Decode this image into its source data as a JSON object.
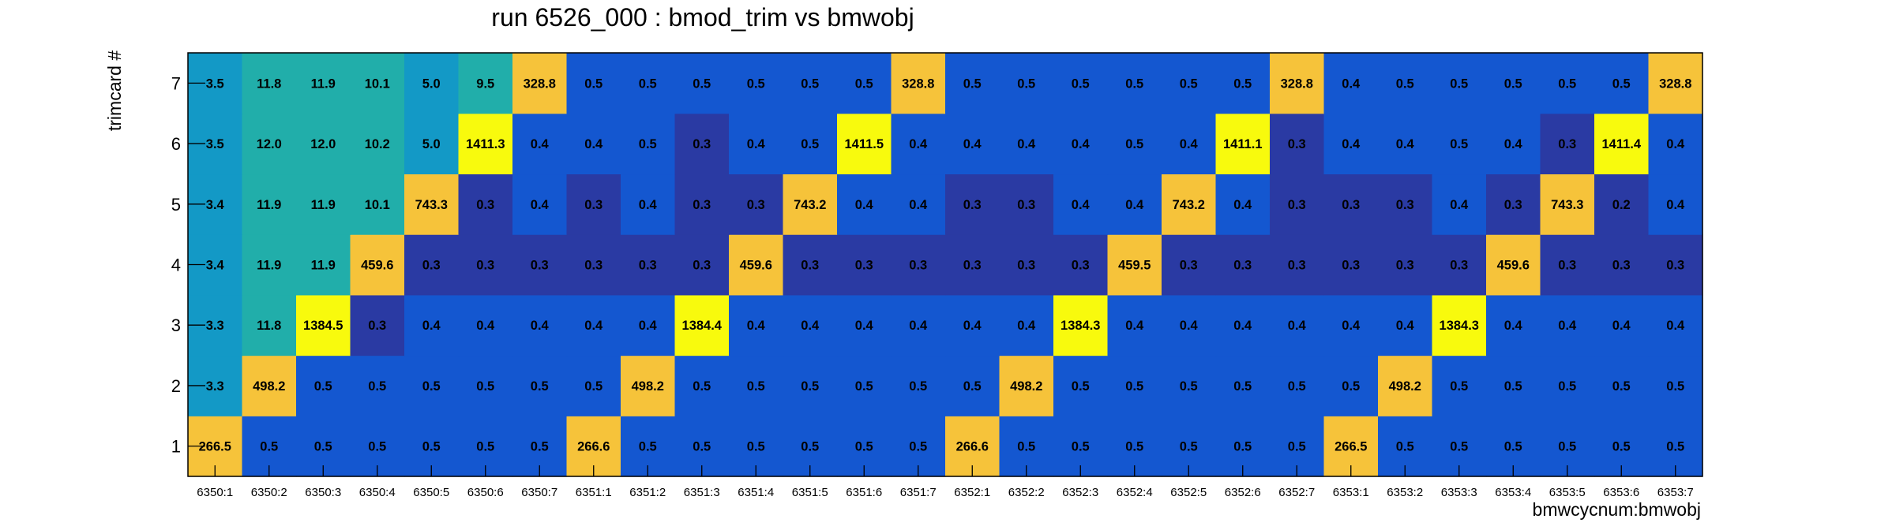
{
  "chart_data": {
    "type": "heatmap",
    "title": "run 6526_000 : bmod_trim vs bmwobj",
    "xlabel": "bmwcycnum:bmwobj",
    "ylabel": "trimcard #",
    "x_categories": [
      "6350:1",
      "6350:2",
      "6350:3",
      "6350:4",
      "6350:5",
      "6350:6",
      "6350:7",
      "6351:1",
      "6351:2",
      "6351:3",
      "6351:4",
      "6351:5",
      "6351:6",
      "6351:7",
      "6352:1",
      "6352:2",
      "6352:3",
      "6352:4",
      "6352:5",
      "6352:6",
      "6352:7",
      "6353:1",
      "6353:2",
      "6353:3",
      "6353:4",
      "6353:5",
      "6353:6",
      "6353:7"
    ],
    "y_categories": [
      "1",
      "2",
      "3",
      "4",
      "5",
      "6",
      "7"
    ],
    "values": [
      [
        "266.5",
        "0.5",
        "0.5",
        "0.5",
        "0.5",
        "0.5",
        "0.5",
        "266.6",
        "0.5",
        "0.5",
        "0.5",
        "0.5",
        "0.5",
        "0.5",
        "266.6",
        "0.5",
        "0.5",
        "0.5",
        "0.5",
        "0.5",
        "0.5",
        "266.5",
        "0.5",
        "0.5",
        "0.5",
        "0.5",
        "0.5",
        "0.5"
      ],
      [
        "3.3",
        "498.2",
        "0.5",
        "0.5",
        "0.5",
        "0.5",
        "0.5",
        "0.5",
        "498.2",
        "0.5",
        "0.5",
        "0.5",
        "0.5",
        "0.5",
        "0.5",
        "498.2",
        "0.5",
        "0.5",
        "0.5",
        "0.5",
        "0.5",
        "0.5",
        "498.2",
        "0.5",
        "0.5",
        "0.5",
        "0.5",
        "0.5"
      ],
      [
        "3.3",
        "11.8",
        "1384.5",
        "0.3",
        "0.4",
        "0.4",
        "0.4",
        "0.4",
        "0.4",
        "1384.4",
        "0.4",
        "0.4",
        "0.4",
        "0.4",
        "0.4",
        "0.4",
        "1384.3",
        "0.4",
        "0.4",
        "0.4",
        "0.4",
        "0.4",
        "0.4",
        "1384.3",
        "0.4",
        "0.4",
        "0.4",
        "0.4"
      ],
      [
        "3.4",
        "11.9",
        "11.9",
        "459.6",
        "0.3",
        "0.3",
        "0.3",
        "0.3",
        "0.3",
        "0.3",
        "459.6",
        "0.3",
        "0.3",
        "0.3",
        "0.3",
        "0.3",
        "0.3",
        "459.5",
        "0.3",
        "0.3",
        "0.3",
        "0.3",
        "0.3",
        "0.3",
        "459.6",
        "0.3",
        "0.3",
        "0.3"
      ],
      [
        "3.4",
        "11.9",
        "11.9",
        "10.1",
        "743.3",
        "0.3",
        "0.4",
        "0.3",
        "0.4",
        "0.3",
        "0.3",
        "743.2",
        "0.4",
        "0.4",
        "0.3",
        "0.3",
        "0.4",
        "0.4",
        "743.2",
        "0.4",
        "0.3",
        "0.3",
        "0.3",
        "0.4",
        "0.3",
        "743.3",
        "0.2",
        "0.4"
      ],
      [
        "3.5",
        "12.0",
        "12.0",
        "10.2",
        "5.0",
        "1411.3",
        "0.4",
        "0.4",
        "0.5",
        "0.3",
        "0.4",
        "0.5",
        "1411.5",
        "0.4",
        "0.4",
        "0.4",
        "0.4",
        "0.5",
        "0.4",
        "1411.1",
        "0.3",
        "0.4",
        "0.4",
        "0.5",
        "0.4",
        "0.3",
        "1411.4",
        "0.4"
      ],
      [
        "3.5",
        "11.8",
        "11.9",
        "10.1",
        "5.0",
        "9.5",
        "328.8",
        "0.5",
        "0.5",
        "0.5",
        "0.5",
        "0.5",
        "0.5",
        "328.8",
        "0.5",
        "0.5",
        "0.5",
        "0.5",
        "0.5",
        "0.5",
        "328.8",
        "0.4",
        "0.5",
        "0.5",
        "0.5",
        "0.5",
        "0.5",
        "328.8"
      ]
    ],
    "colors": {
      "deep": "#2a3aa3",
      "blue": "#1457d0",
      "cyan": "#1399c6",
      "teal": "#21aeaa",
      "amber": "#f6c33a",
      "yellow": "#f8fa0d"
    },
    "grid": false,
    "legend": "none"
  }
}
